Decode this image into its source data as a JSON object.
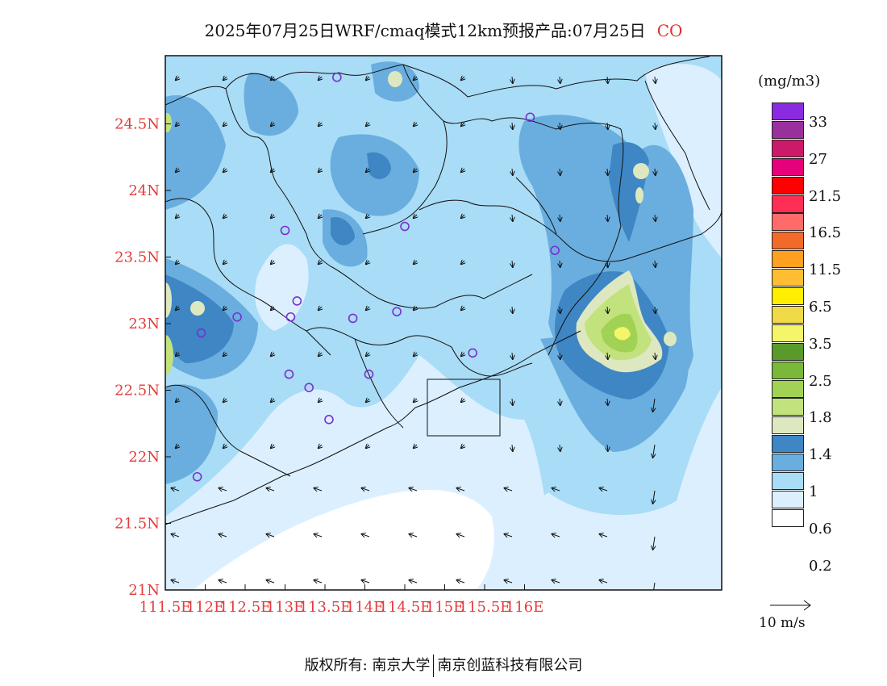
{
  "title": {
    "main": "2025年07月25日WRF/cmaq模式12km预报产品:07月25日",
    "species": "CO"
  },
  "axes": {
    "lat_labels": [
      "24.5N",
      "24N",
      "23.5N",
      "23N",
      "22.5N",
      "22N",
      "21.5N",
      "21N"
    ],
    "lon_labels": [
      "111.5E",
      "112E",
      "112.5E",
      "113E",
      "113.5E",
      "114E",
      "114.5E",
      "115E",
      "115.5E",
      "116E"
    ]
  },
  "legend": {
    "unit": "(mg/m3)",
    "colors": [
      "#ffffff",
      "#dcefff",
      "#a9dcf6",
      "#6aaedf",
      "#3f86c4",
      "#dde8c0",
      "#c2e27e",
      "#a2d254",
      "#7ab83a",
      "#5a9a2a",
      "#f5f56a",
      "#f1da48",
      "#ffee00",
      "#ffbd33",
      "#ffa020",
      "#f26a2a",
      "#ff6b6b",
      "#ff2e55",
      "#ff0000",
      "#e6007a",
      "#cc1a6b",
      "#9a2f9e",
      "#8a2be2"
    ],
    "labels": [
      "0.2",
      "0.6",
      "1",
      "1.4",
      "1.8",
      "2.5",
      "3.5",
      "6.5",
      "11.5",
      "16.5",
      "21.5",
      "27",
      "33"
    ]
  },
  "wind_ref": {
    "label": "10 m/s"
  },
  "footer": {
    "left": "版权所有: 南京大学",
    "right": "南京创蓝科技有限公司"
  },
  "stations": [
    {
      "lon": 113.65,
      "lat": 24.85
    },
    {
      "lon": 116.07,
      "lat": 24.55
    },
    {
      "lon": 114.5,
      "lat": 23.73
    },
    {
      "lon": 113.0,
      "lat": 23.7
    },
    {
      "lon": 113.15,
      "lat": 23.17
    },
    {
      "lon": 113.07,
      "lat": 23.05
    },
    {
      "lon": 113.85,
      "lat": 23.04
    },
    {
      "lon": 114.4,
      "lat": 23.09
    },
    {
      "lon": 112.4,
      "lat": 23.05
    },
    {
      "lon": 111.95,
      "lat": 22.93
    },
    {
      "lon": 113.05,
      "lat": 22.62
    },
    {
      "lon": 113.3,
      "lat": 22.52
    },
    {
      "lon": 114.05,
      "lat": 22.62
    },
    {
      "lon": 113.55,
      "lat": 22.28
    },
    {
      "lon": 115.35,
      "lat": 22.78
    },
    {
      "lon": 116.38,
      "lat": 23.55
    },
    {
      "lon": 111.9,
      "lat": 21.85
    }
  ]
}
